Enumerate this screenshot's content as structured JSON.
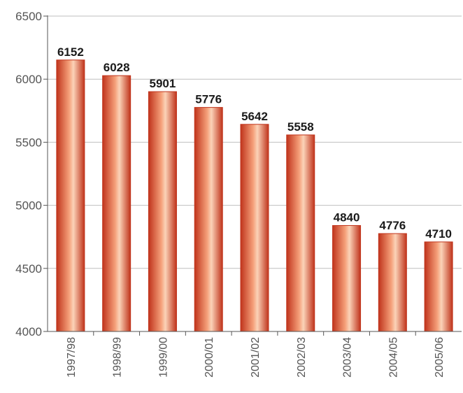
{
  "chart_data": {
    "type": "bar",
    "categories": [
      "1997/98",
      "1998/99",
      "1999/00",
      "2000/01",
      "2001/02",
      "2002/03",
      "2003/04",
      "2004/05",
      "2005/06"
    ],
    "values": [
      6152,
      6028,
      5901,
      5776,
      5642,
      5558,
      4840,
      4776,
      4710
    ],
    "data_labels": [
      "6152",
      "6028",
      "5901",
      "5776",
      "5642",
      "5558",
      "4840",
      "4776",
      "4710"
    ],
    "title": "",
    "xlabel": "",
    "ylabel": "",
    "ylim": [
      4000,
      6500
    ],
    "yticks": [
      4000,
      4500,
      5000,
      5500,
      6000,
      6500
    ],
    "ytick_labels": [
      "4000",
      "4500",
      "5000",
      "5500",
      "6000",
      "6500"
    ],
    "grid": true,
    "legend": "none",
    "colors": {
      "bar_edge": "#c0341c",
      "bar_mid": "#f5a07a",
      "bar_light": "#fbd3b8",
      "grid": "#bfbfbf",
      "axis": "#555555"
    }
  }
}
